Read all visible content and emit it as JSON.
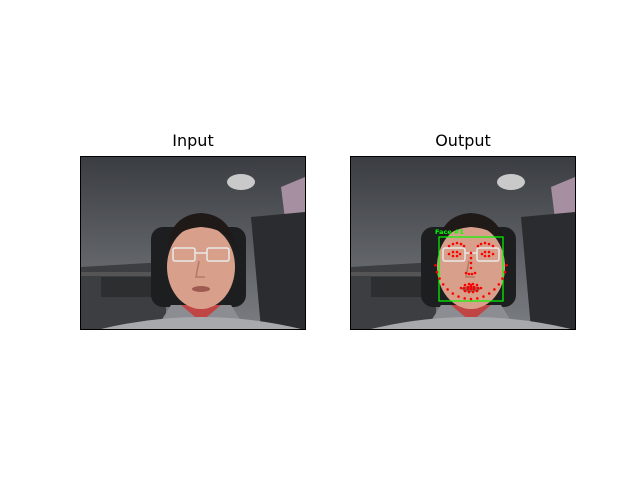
{
  "figure": {
    "panels": [
      {
        "title": "Input"
      },
      {
        "title": "Output",
        "detection_label": "Face #1",
        "box_color": "#00ff00",
        "landmark_color": "#ff0000"
      }
    ]
  }
}
